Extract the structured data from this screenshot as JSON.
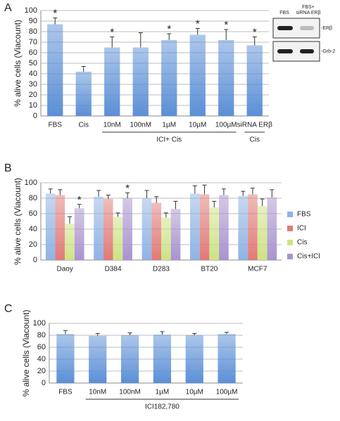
{
  "chart_data": [
    {
      "panel": "A",
      "type": "bar",
      "ylabel": "% alive cells (Viacount)",
      "categories": [
        "FBS",
        "Cis",
        "10nM",
        "100nM",
        "1µM",
        "10µM",
        "100µM",
        "siRNA ERβ"
      ],
      "series": [
        {
          "color": "#5b8fd6",
          "values": [
            87,
            42,
            65,
            65,
            72,
            77,
            72,
            67
          ],
          "errors": [
            6,
            5,
            10,
            14,
            6,
            6,
            10,
            8
          ],
          "significance": [
            "*",
            null,
            "*",
            null,
            "*",
            "*",
            "*",
            "*"
          ]
        }
      ],
      "ylim": [
        0,
        100
      ],
      "yticks": [
        0,
        10,
        20,
        30,
        40,
        50,
        60,
        70,
        80,
        90,
        100
      ],
      "grid": true,
      "groups": [
        {
          "label": "ICI+ Cis",
          "from": 2,
          "to": 6
        },
        {
          "label": "Cis",
          "from": 7,
          "to": 7
        }
      ],
      "inset": {
        "lanes": [
          [
            "FBS"
          ],
          [
            "FBS+",
            "siRNA ERβ"
          ]
        ],
        "bands": [
          "-ERβ",
          "-Grb-2"
        ]
      }
    },
    {
      "panel": "B",
      "type": "grouped_bar",
      "ylabel": "% alive cells (Viacount)",
      "categories": [
        "Daoy",
        "D384",
        "D283",
        "BT20",
        "MCF7"
      ],
      "series": [
        {
          "name": "FBS",
          "color": "#8fb3e3",
          "values": [
            86,
            82,
            80,
            86,
            83
          ],
          "errors": [
            6,
            8,
            10,
            10,
            6
          ],
          "significance": [
            null,
            null,
            null,
            null,
            null
          ]
        },
        {
          "name": "ICI",
          "color": "#e07a76",
          "values": [
            84,
            79,
            74,
            85,
            85
          ],
          "errors": [
            7,
            5,
            8,
            12,
            8
          ],
          "significance": [
            null,
            null,
            null,
            null,
            null
          ]
        },
        {
          "name": "Cis",
          "color": "#cde384",
          "values": [
            47,
            56,
            55,
            68,
            70
          ],
          "errors": [
            9,
            5,
            6,
            8,
            9
          ],
          "significance": [
            null,
            null,
            null,
            null,
            null
          ]
        },
        {
          "name": "Cis+ICI",
          "color": "#a993cf",
          "values": [
            67,
            80,
            66,
            84,
            81
          ],
          "errors": [
            5,
            7,
            10,
            8,
            10
          ],
          "significance": [
            "*",
            "*",
            null,
            null,
            null
          ]
        }
      ],
      "ylim": [
        0,
        100
      ],
      "yticks": [
        0,
        20,
        40,
        60,
        80,
        100
      ],
      "grid": true,
      "legend": "right"
    },
    {
      "panel": "C",
      "type": "bar",
      "ylabel": "% alive cells (Viacount)",
      "categories": [
        "FBS",
        "10nM",
        "100nM",
        "1µM",
        "10µM",
        "100µM"
      ],
      "series": [
        {
          "color": "#5b8fd6",
          "values": [
            82,
            79,
            80,
            81,
            80,
            82
          ],
          "errors": [
            6,
            4,
            4,
            5,
            3,
            3
          ],
          "significance": [
            null,
            null,
            null,
            null,
            null,
            null
          ]
        }
      ],
      "ylim": [
        0,
        100
      ],
      "yticks": [
        0,
        20,
        40,
        60,
        80,
        100
      ],
      "grid": true,
      "groups": [
        {
          "label": "ICI182,780",
          "from": 1,
          "to": 5
        }
      ]
    }
  ]
}
